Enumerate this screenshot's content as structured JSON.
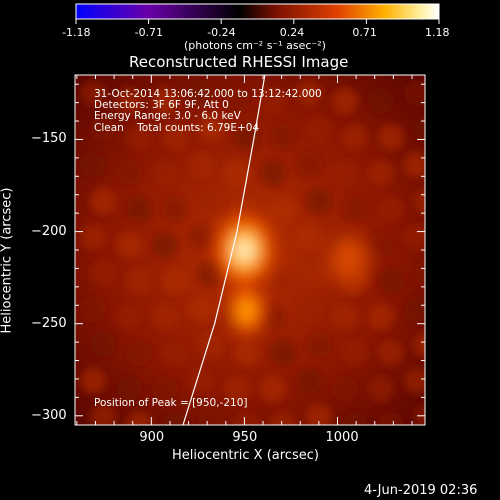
{
  "colorbar": {
    "ticks": [
      "-1.18",
      "-0.71",
      "-0.24",
      "0.24",
      "0.71",
      "1.18"
    ],
    "unit_label": "(photons cm⁻² s⁻¹ asec⁻²)",
    "colors": [
      "#0000ff",
      "#6a00a8",
      "#000000",
      "#7a1000",
      "#e04000",
      "#ffb000",
      "#fff0a0",
      "#ffffff"
    ]
  },
  "chart_data": {
    "type": "heatmap",
    "title": "Reconstructed RHESSI Image",
    "xlabel": "Heliocentric X (arcsec)",
    "ylabel": "Heliocentric Y (arcsec)",
    "xlim": [
      859,
      1047
    ],
    "ylim": [
      -305,
      -115
    ],
    "xticks": [
      900,
      950,
      1000
    ],
    "yticks": [
      -150,
      -200,
      -250,
      -300
    ],
    "annotations": [
      "31-Oct-2014 13:06:42.000 to 13:12:42.000",
      "Detectors: 3F 6F 9F, Att 0",
      "Energy Range: 3.0 - 6.0 keV",
      "Clean    Total counts: 6.79E+04"
    ],
    "peak_label": "Position of Peak = [950,-210]",
    "peak": [
      950,
      -210
    ],
    "sources": [
      {
        "x": 950,
        "y": -210,
        "intensity": 1.18
      },
      {
        "x": 951,
        "y": -243,
        "intensity": 0.55
      },
      {
        "x": 1006,
        "y": -215,
        "intensity": 0.22
      }
    ],
    "limb_curve": [
      [
        917,
        -305
      ],
      [
        934,
        -250
      ],
      [
        946,
        -200
      ],
      [
        955,
        -150
      ],
      [
        961,
        -115
      ]
    ]
  },
  "footer_date": "4-Jun-2019 02:36"
}
